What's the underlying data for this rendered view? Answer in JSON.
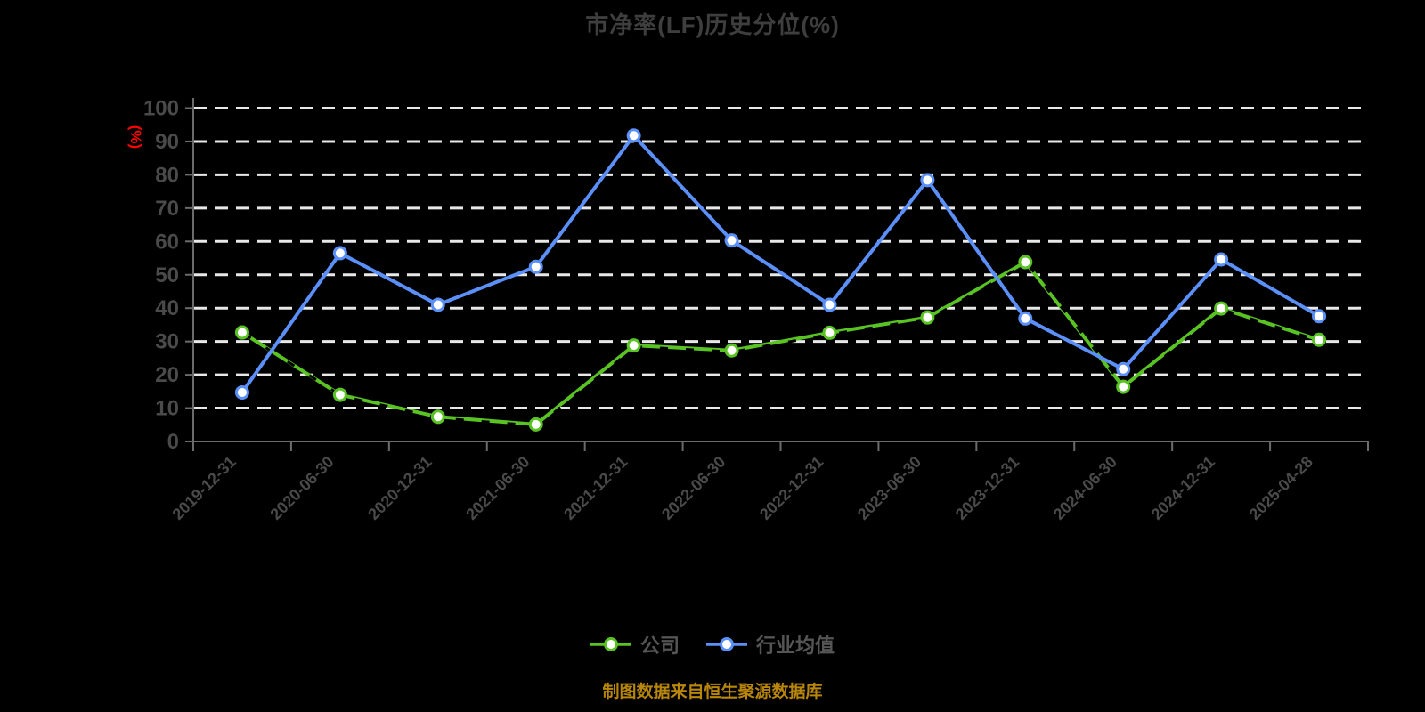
{
  "chart_data": {
    "type": "line",
    "title": "市净率(LF)历史分位(%)",
    "y_unit_label": "(%)",
    "categories": [
      "2019-12-31",
      "2020-06-30",
      "2020-12-31",
      "2021-06-30",
      "2021-12-31",
      "2022-06-30",
      "2022-12-31",
      "2023-06-30",
      "2023-12-31",
      "2024-06-30",
      "2024-12-31",
      "2025-04-28"
    ],
    "series": [
      {
        "name": "公司",
        "color": "#58c322",
        "marker": "white-filled-circle",
        "values": [
          32.7,
          14.0,
          7.4,
          5.1,
          28.8,
          27.3,
          32.6,
          37.2,
          53.8,
          16.4,
          39.9,
          30.5
        ]
      },
      {
        "name": "行业均值",
        "color": "#5b8ff9",
        "marker": "white-filled-circle",
        "values": [
          14.7,
          56.5,
          41.0,
          52.4,
          91.8,
          60.3,
          41.0,
          78.4,
          36.9,
          21.7,
          54.6,
          37.6
        ]
      }
    ],
    "ylim": [
      0,
      100
    ],
    "y_tick_step": 10,
    "grid": "horizontal-white-dashed",
    "legend_position": "bottom-center",
    "background": "#000000"
  },
  "footer": {
    "source_note": "制图数据来自恒生聚源数据库"
  },
  "colors": {
    "background": "#000000",
    "title": "#3e3e3e",
    "axis_line": "#6b6b6b",
    "axis_label": "#4a4a4a",
    "gridline": "#e8e8e8",
    "y_unit_label": "#ff0000",
    "legend_text": "#555555",
    "footer_text": "#b8860b",
    "company_series": "#58c322",
    "industry_series": "#5b8ff9"
  }
}
